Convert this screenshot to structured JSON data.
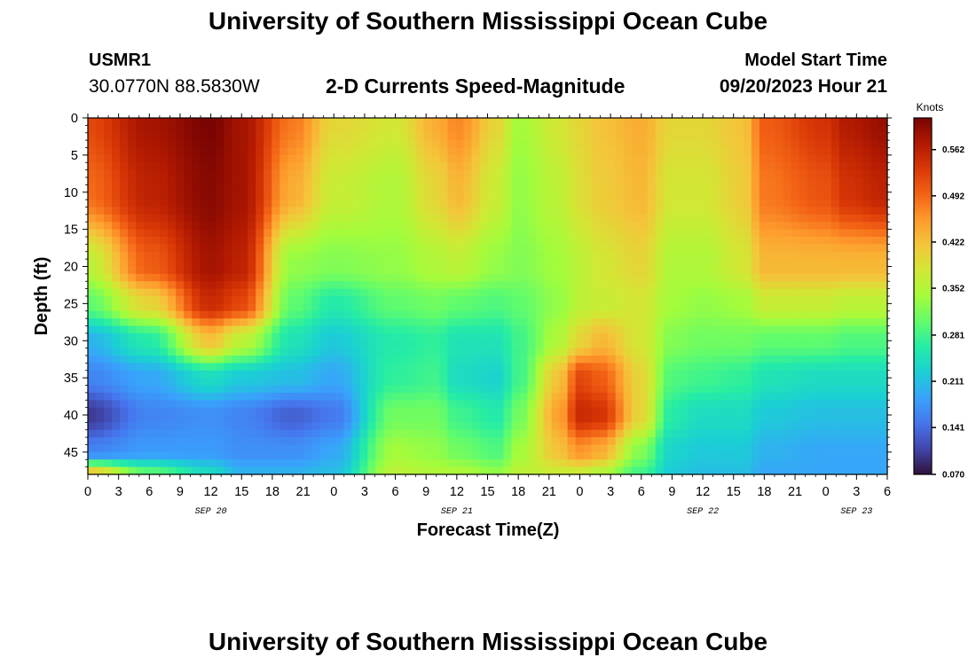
{
  "header": {
    "title_top": "University of Southern Mississippi Ocean Cube",
    "title_bottom": "University of Southern Mississippi Ocean Cube",
    "station_id": "USMR1",
    "station_coords": "30.0770N  88.5830W",
    "subtitle": "2-D Currents Speed-Magnitude",
    "start_label": "Model Start Time",
    "start_value": "09/20/2023 Hour 21"
  },
  "chart_data": {
    "type": "heatmap",
    "title": "2-D Currents Speed-Magnitude",
    "xlabel": "Forecast Time(Z)",
    "ylabel": "Depth (ft)",
    "x_hours_range": [
      0,
      78
    ],
    "y_range": [
      0,
      48
    ],
    "y_ticks": [
      "0",
      "5",
      "10",
      "15",
      "20",
      "25",
      "30",
      "35",
      "40",
      "45"
    ],
    "x_ticks": [
      "0",
      "3",
      "6",
      "9",
      "12",
      "15",
      "18",
      "21",
      "0",
      "3",
      "6",
      "9",
      "12",
      "15",
      "18",
      "21",
      "0",
      "3",
      "6",
      "9",
      "12",
      "15",
      "18",
      "21",
      "0",
      "3",
      "6"
    ],
    "date_labels": [
      {
        "label": "SEP 20",
        "hour": 12
      },
      {
        "label": "SEP 21",
        "hour": 36
      },
      {
        "label": "SEP 22",
        "hour": 60
      },
      {
        "label": "SEP 23",
        "hour": 75
      }
    ],
    "colorbar": {
      "unit": "Knots",
      "range": [
        0.07,
        0.61
      ],
      "tick_values": [
        "0.562",
        "0.492",
        "0.422",
        "0.352",
        "0.281",
        "0.211",
        "0.141",
        "0.070"
      ],
      "colormap": [
        "#30123b",
        "#4145ab",
        "#4675ed",
        "#39a2fc",
        "#1bcfd4",
        "#24eca6",
        "#61fc6c",
        "#a4fc3b",
        "#d1e834",
        "#f3c63a",
        "#fe9b2d",
        "#f36315",
        "#d93806",
        "#b11901",
        "#7a0402"
      ]
    },
    "speed_knots": {
      "hours": [
        0,
        6,
        12,
        15,
        20,
        24,
        30,
        34,
        36,
        40,
        42,
        46,
        48,
        50,
        54,
        57,
        60,
        64,
        66,
        72,
        74,
        78
      ],
      "depths_ft": [
        0,
        10,
        20,
        25,
        30,
        35,
        40,
        45,
        48
      ],
      "rows": [
        [
          0.52,
          0.58,
          0.61,
          0.58,
          0.48,
          0.4,
          0.38,
          0.44,
          0.47,
          0.4,
          0.34,
          0.38,
          0.4,
          0.42,
          0.44,
          0.4,
          0.4,
          0.42,
          0.5,
          0.54,
          0.57,
          0.59
        ],
        [
          0.49,
          0.56,
          0.6,
          0.58,
          0.44,
          0.37,
          0.35,
          0.4,
          0.43,
          0.37,
          0.33,
          0.36,
          0.39,
          0.41,
          0.43,
          0.38,
          0.38,
          0.41,
          0.48,
          0.51,
          0.54,
          0.56
        ],
        [
          0.36,
          0.5,
          0.58,
          0.56,
          0.33,
          0.32,
          0.33,
          0.35,
          0.36,
          0.33,
          0.32,
          0.34,
          0.36,
          0.38,
          0.4,
          0.35,
          0.35,
          0.38,
          0.43,
          0.43,
          0.43,
          0.43
        ],
        [
          0.3,
          0.4,
          0.55,
          0.52,
          0.3,
          0.26,
          0.3,
          0.31,
          0.3,
          0.29,
          0.3,
          0.33,
          0.36,
          0.37,
          0.38,
          0.34,
          0.33,
          0.34,
          0.37,
          0.37,
          0.36,
          0.36
        ],
        [
          0.2,
          0.26,
          0.42,
          0.36,
          0.25,
          0.22,
          0.26,
          0.27,
          0.25,
          0.25,
          0.28,
          0.35,
          0.4,
          0.43,
          0.38,
          0.32,
          0.31,
          0.31,
          0.3,
          0.3,
          0.29,
          0.29
        ],
        [
          0.16,
          0.19,
          0.24,
          0.22,
          0.21,
          0.19,
          0.27,
          0.28,
          0.24,
          0.23,
          0.28,
          0.42,
          0.52,
          0.5,
          0.4,
          0.29,
          0.28,
          0.27,
          0.25,
          0.24,
          0.24,
          0.24
        ],
        [
          0.1,
          0.16,
          0.17,
          0.16,
          0.13,
          0.15,
          0.31,
          0.31,
          0.28,
          0.26,
          0.31,
          0.45,
          0.55,
          0.54,
          0.4,
          0.26,
          0.24,
          0.24,
          0.22,
          0.21,
          0.21,
          0.21
        ],
        [
          0.16,
          0.18,
          0.18,
          0.17,
          0.17,
          0.19,
          0.34,
          0.33,
          0.31,
          0.29,
          0.34,
          0.42,
          0.46,
          0.44,
          0.32,
          0.23,
          0.22,
          0.22,
          0.2,
          0.19,
          0.19,
          0.19
        ],
        [
          0.42,
          0.3,
          0.24,
          0.2,
          0.2,
          0.21,
          0.36,
          0.35,
          0.35,
          0.33,
          0.36,
          0.37,
          0.37,
          0.35,
          0.28,
          0.22,
          0.21,
          0.21,
          0.19,
          0.19,
          0.19,
          0.19
        ]
      ]
    }
  }
}
